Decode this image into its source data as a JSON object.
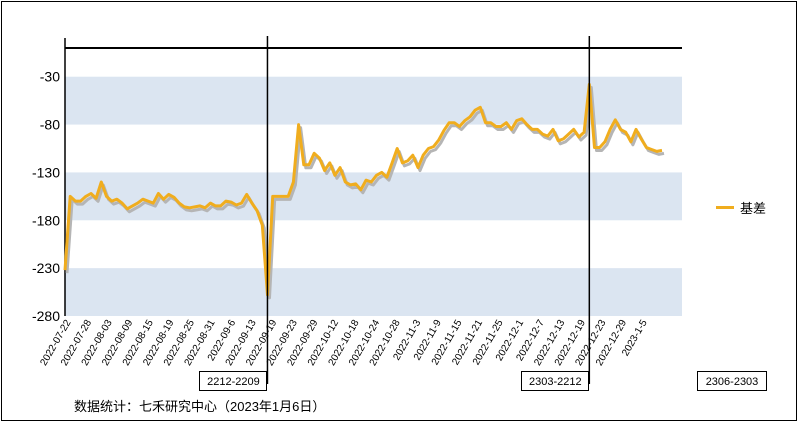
{
  "chart_data": {
    "type": "line",
    "series": [
      {
        "name": "基差",
        "color": "#f0ad1e",
        "values": [
          -232,
          -155,
          -160,
          -160,
          -155,
          -152,
          -157,
          -140,
          -155,
          -160,
          -158,
          -162,
          -168,
          -165,
          -162,
          -158,
          -160,
          -162,
          -152,
          -158,
          -153,
          -156,
          -162,
          -166,
          -167,
          -166,
          -165,
          -167,
          -162,
          -165,
          -165,
          -160,
          -161,
          -164,
          -162,
          -153,
          -162,
          -170,
          -185,
          -258,
          -155,
          -155,
          -155,
          -155,
          -140,
          -80,
          -122,
          -122,
          -110,
          -115,
          -128,
          -120,
          -133,
          -125,
          -140,
          -143,
          -142,
          -148,
          -138,
          -140,
          -133,
          -130,
          -135,
          -120,
          -105,
          -120,
          -118,
          -112,
          -125,
          -112,
          -105,
          -103,
          -96,
          -86,
          -78,
          -78,
          -82,
          -76,
          -72,
          -65,
          -62,
          -78,
          -78,
          -82,
          -82,
          -78,
          -85,
          -76,
          -74,
          -80,
          -85,
          -85,
          -90,
          -92,
          -85,
          -97,
          -95,
          -90,
          -85,
          -93,
          -88,
          -38,
          -104,
          -104,
          -98,
          -85,
          -75,
          -85,
          -88,
          -98,
          -85,
          -95,
          -104,
          -106,
          -108,
          -107
        ]
      }
    ],
    "y_ticks": [
      "-30",
      "-80",
      "-130",
      "-180",
      "-230",
      "-280"
    ],
    "ylim": [
      -280,
      0
    ],
    "x_ticks": [
      "2022-07-22",
      "2022-07-28",
      "2022-08-03",
      "2022-08-09",
      "2022-08-15",
      "2022-08-19",
      "2022-08-25",
      "2022-08-31",
      "2022-09-6",
      "2022-09-13",
      "2022-09-19",
      "2022-09-23",
      "2022-09-29",
      "2022-10-12",
      "2022-10-18",
      "2022-10-24",
      "2022-10-28",
      "2022-11-3",
      "2022-11-9",
      "2022-11-15",
      "2022-11-21",
      "2022-11-25",
      "2022-12-1",
      "2022-12-7",
      "2022-12-13",
      "2022-12-19",
      "2022-12-23",
      "2022-12-29",
      "2023-1-5"
    ],
    "contract_dividers": [
      {
        "label": "2212-2209",
        "at_point": 39
      },
      {
        "label": "2303-2212",
        "at_point": 101
      }
    ],
    "trailing_label": "2306-2303",
    "grid": "alternating horizontal bands",
    "band_color": "#dbe5f1",
    "legend_position": "right"
  },
  "source_note": "数据统计：七禾研究中心（2023年1月6日）"
}
